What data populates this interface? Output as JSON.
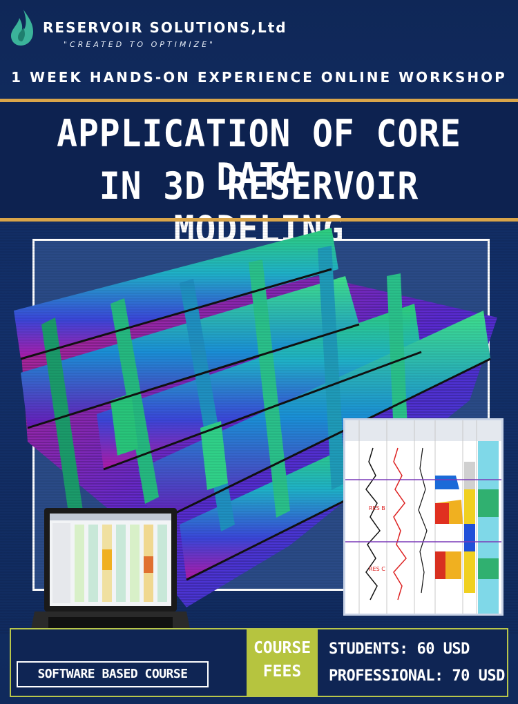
{
  "header": {
    "company": "RESERVOIR SOLUTIONS,Ltd",
    "tagline": "\"CREATED TO OPTIMIZE\"",
    "workshop": "1 WEEK HANDS-ON EXPERIENCE ONLINE WORKSHOP",
    "logo_icon": "flame-drop-icon",
    "logo_color": "#3bb39a"
  },
  "title": {
    "line1": "APPLICATION OF CORE DATA",
    "line2": "IN 3D RESERVOIR MODELING"
  },
  "imagery": {
    "model_icon": "3d-reservoir-model-image",
    "log_icon": "well-log-panel-image",
    "log_labels": [
      "RES B",
      "RES C"
    ],
    "laptop_icon": "laptop-software-icon"
  },
  "footer": {
    "course_type": "SOFTWARE BASED COURSE",
    "fees_line1": "COURSE",
    "fees_line2": "FEES",
    "students": "STUDENTS: 60 USD",
    "professional": "PROFESSIONAL: 70 USD",
    "accent": "#b6c43f"
  }
}
